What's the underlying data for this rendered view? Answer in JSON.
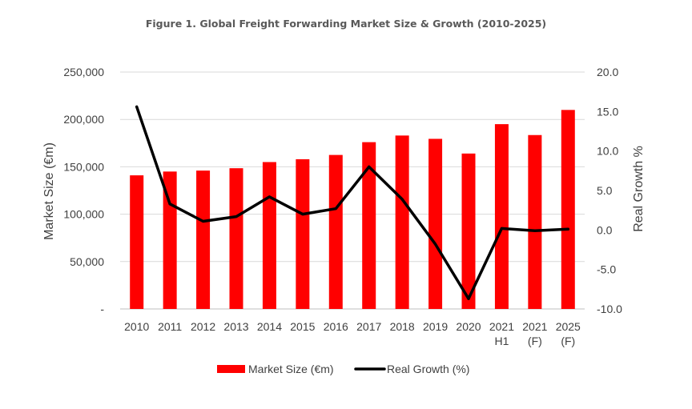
{
  "chart_data": {
    "type": "bar+line",
    "title": "Figure 1. Global Freight Forwarding Market Size & Growth (2010-2025)",
    "categories": [
      [
        "2010"
      ],
      [
        "2011"
      ],
      [
        "2012"
      ],
      [
        "2013"
      ],
      [
        "2014"
      ],
      [
        "2015"
      ],
      [
        "2016"
      ],
      [
        "2017"
      ],
      [
        "2018"
      ],
      [
        "2019"
      ],
      [
        "2020"
      ],
      [
        "2021",
        "H1"
      ],
      [
        "2021",
        "(F)"
      ],
      [
        "2025",
        "(F)"
      ]
    ],
    "series": [
      {
        "name": "Market Size (€m)",
        "type": "bar",
        "axis": "left",
        "color": "#ff0000",
        "values": [
          141000,
          145000,
          146000,
          148500,
          155000,
          158000,
          162500,
          176000,
          183000,
          179500,
          164000,
          195000,
          183500,
          210000
        ]
      },
      {
        "name": "Real Growth (%)",
        "type": "line",
        "axis": "right",
        "color": "#000000",
        "values": [
          15.6,
          3.3,
          1.1,
          1.7,
          4.2,
          2.0,
          2.7,
          8.0,
          3.9,
          -1.8,
          -8.7,
          0.2,
          -0.1,
          0.1
        ]
      }
    ],
    "ylabel": "Market Size (€m)",
    "y2label": "Real Growth %",
    "ylim": [
      0,
      250000
    ],
    "y2lim": [
      -10,
      20
    ],
    "yticks": [
      "-",
      "50,000",
      "100,000",
      "150,000",
      "200,000",
      "250,000"
    ],
    "y2ticks": [
      "-10.0",
      "-5.0",
      "0.0",
      "5.0",
      "10.0",
      "15.0",
      "20.0"
    ],
    "grid": true,
    "legend": [
      "Market Size (€m)",
      "Real Growth (%)"
    ],
    "legend_position": "bottom"
  }
}
